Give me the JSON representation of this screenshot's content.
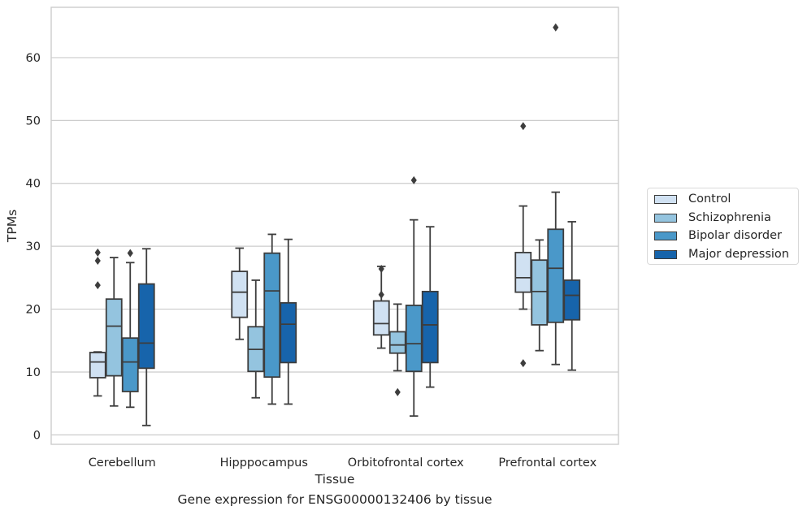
{
  "chart_data": {
    "type": "box",
    "title": "",
    "caption": "Gene expression for ENSG00000132406 by tissue",
    "xlabel": "Tissue",
    "ylabel": "TPMs",
    "ylim": [
      -1.5,
      68
    ],
    "yticks": [
      0,
      10,
      20,
      30,
      40,
      50,
      60
    ],
    "grid": "horizontal",
    "legend_position": "right",
    "categories": [
      "Cerebellum",
      "Hipppocampus",
      "Orbitofrontal cortex",
      "Prefrontal cortex"
    ],
    "series": [
      {
        "name": "Control",
        "color": "#d0e1f2",
        "boxes": [
          {
            "whislo": 6.2,
            "q1": 9.1,
            "med": 11.6,
            "q3": 13.1,
            "whishi": 13.2,
            "fliers": [
              23.8,
              27.7,
              29.0
            ]
          },
          {
            "whislo": 15.2,
            "q1": 18.7,
            "med": 22.7,
            "q3": 26.0,
            "whishi": 29.7,
            "fliers": []
          },
          {
            "whislo": 13.8,
            "q1": 15.9,
            "med": 17.7,
            "q3": 21.3,
            "whishi": 26.8,
            "fliers": [
              22.3,
              26.4
            ]
          },
          {
            "whislo": 20.0,
            "q1": 22.7,
            "med": 25.0,
            "q3": 29.0,
            "whishi": 36.4,
            "fliers": [
              11.4,
              49.1
            ]
          }
        ]
      },
      {
        "name": "Schizophrenia",
        "color": "#94c4df",
        "boxes": [
          {
            "whislo": 4.6,
            "q1": 9.4,
            "med": 17.3,
            "q3": 21.6,
            "whishi": 28.2,
            "fliers": []
          },
          {
            "whislo": 5.9,
            "q1": 10.1,
            "med": 13.6,
            "q3": 17.2,
            "whishi": 24.6,
            "fliers": []
          },
          {
            "whislo": 10.2,
            "q1": 13.0,
            "med": 14.3,
            "q3": 16.4,
            "whishi": 20.8,
            "fliers": [
              6.8
            ]
          },
          {
            "whislo": 13.4,
            "q1": 17.5,
            "med": 22.8,
            "q3": 27.8,
            "whishi": 31.0,
            "fliers": []
          }
        ]
      },
      {
        "name": "Bipolar disorder",
        "color": "#4a98c9",
        "boxes": [
          {
            "whislo": 4.4,
            "q1": 6.9,
            "med": 11.6,
            "q3": 15.4,
            "whishi": 27.4,
            "fliers": [
              28.9
            ]
          },
          {
            "whislo": 4.9,
            "q1": 9.2,
            "med": 22.9,
            "q3": 28.9,
            "whishi": 31.9,
            "fliers": []
          },
          {
            "whislo": 3.0,
            "q1": 10.1,
            "med": 14.5,
            "q3": 20.6,
            "whishi": 34.2,
            "fliers": [
              40.5
            ]
          },
          {
            "whislo": 11.2,
            "q1": 17.9,
            "med": 26.5,
            "q3": 32.7,
            "whishi": 38.6,
            "fliers": [
              64.8
            ]
          }
        ]
      },
      {
        "name": "Major depression",
        "color": "#1764ab",
        "boxes": [
          {
            "whislo": 1.5,
            "q1": 10.6,
            "med": 14.6,
            "q3": 24.0,
            "whishi": 29.6,
            "fliers": []
          },
          {
            "whislo": 4.9,
            "q1": 11.5,
            "med": 17.6,
            "q3": 21.0,
            "whishi": 31.1,
            "fliers": []
          },
          {
            "whislo": 7.6,
            "q1": 11.5,
            "med": 17.5,
            "q3": 22.8,
            "whishi": 33.1,
            "fliers": []
          },
          {
            "whislo": 10.3,
            "q1": 18.3,
            "med": 22.2,
            "q3": 24.6,
            "whishi": 33.9,
            "fliers": []
          }
        ]
      }
    ]
  }
}
